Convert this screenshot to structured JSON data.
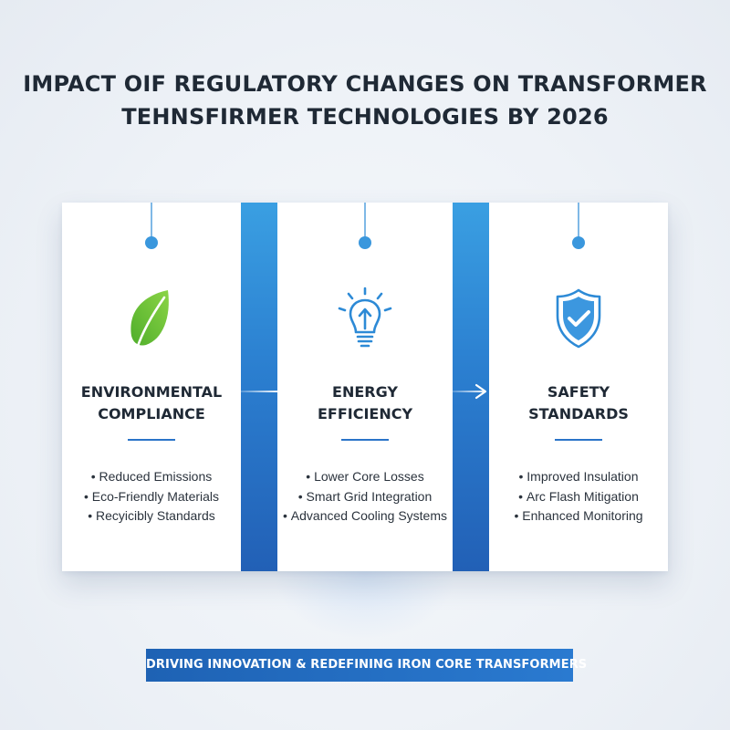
{
  "title": {
    "line1": "IMPACT OIF REGULATORY CHANGES ON TRANSFORMER",
    "line2": "TEHNSFIRMER TECHNOLOGIES BY 2026"
  },
  "cards": [
    {
      "icon": "leaf-icon",
      "title_line1": "ENVIRONMENTAL",
      "title_line2": "COMPLIANCE",
      "bullets": [
        "Reduced Emissions",
        "Eco-Friendly Materials",
        "Recyicibly Standards"
      ]
    },
    {
      "icon": "lightbulb-icon",
      "title_line1": "ENERGY",
      "title_line2": "EFFICIENCY",
      "bullets": [
        "Lower Core Losses",
        "Smart Grid Integration",
        "Advanced Cooling Systems"
      ]
    },
    {
      "icon": "shield-check-icon",
      "title_line1": "SAFETY",
      "title_line2": "STANDARDS",
      "bullets": [
        "Improved Insulation",
        "Arc Flash Mitigation",
        "Enhanced Monitoring"
      ]
    }
  ],
  "banner": {
    "text": "DRIVING INNOVATION & REDEFINING IRON CORE TRANSFORMERS"
  },
  "colors": {
    "accent_blue": "#2a7ad0",
    "leaf_green": "#6cc33a",
    "title_dark": "#1f2935"
  }
}
